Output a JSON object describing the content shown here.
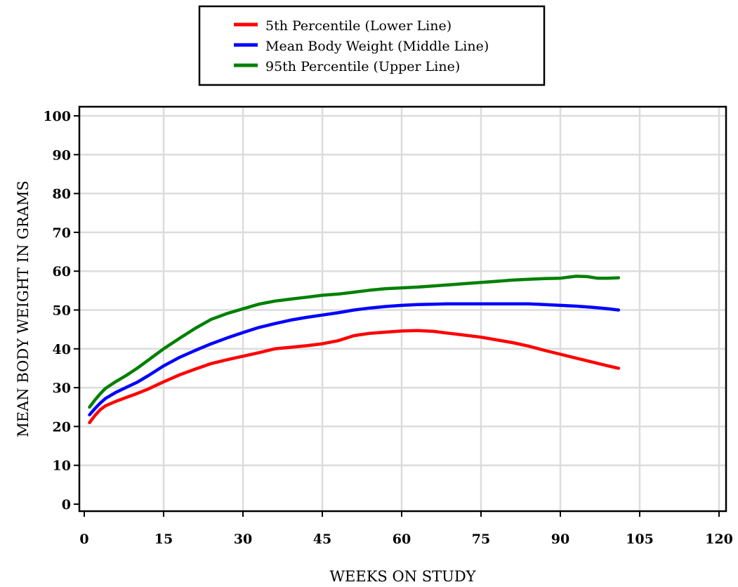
{
  "chart_data": {
    "type": "line",
    "title": "",
    "xlabel": "WEEKS ON STUDY",
    "ylabel": "MEAN BODY WEIGHT IN GRAMS",
    "xlim": [
      0,
      120
    ],
    "ylim": [
      0,
      100
    ],
    "xticks": [
      0,
      15,
      30,
      45,
      60,
      75,
      90,
      105,
      120
    ],
    "yticks": [
      0,
      10,
      20,
      30,
      40,
      50,
      60,
      70,
      80,
      90,
      100
    ],
    "grid": true,
    "legend_position": "top-center",
    "series": [
      {
        "name": "5th Percentile (Lower Line)",
        "color": "#ff0000",
        "points": [
          [
            1,
            21
          ],
          [
            2,
            22.8
          ],
          [
            3,
            24.3
          ],
          [
            4,
            25.3
          ],
          [
            6,
            26.5
          ],
          [
            8,
            27.5
          ],
          [
            10,
            28.5
          ],
          [
            12,
            29.6
          ],
          [
            15,
            31.5
          ],
          [
            18,
            33.3
          ],
          [
            21,
            34.8
          ],
          [
            24,
            36.2
          ],
          [
            27,
            37.2
          ],
          [
            30,
            38.1
          ],
          [
            33,
            39
          ],
          [
            36,
            40
          ],
          [
            39,
            40.4
          ],
          [
            42,
            40.8
          ],
          [
            45,
            41.3
          ],
          [
            48,
            42.1
          ],
          [
            51,
            43.4
          ],
          [
            54,
            44
          ],
          [
            57,
            44.3
          ],
          [
            60,
            44.6
          ],
          [
            63,
            44.7
          ],
          [
            66,
            44.5
          ],
          [
            69,
            44
          ],
          [
            72,
            43.5
          ],
          [
            75,
            43
          ],
          [
            78,
            42.3
          ],
          [
            81,
            41.6
          ],
          [
            84,
            40.7
          ],
          [
            87,
            39.6
          ],
          [
            90,
            38.6
          ],
          [
            93,
            37.6
          ],
          [
            96,
            36.6
          ],
          [
            99,
            35.6
          ],
          [
            101,
            35
          ]
        ]
      },
      {
        "name": "Mean Body Weight (Middle Line)",
        "color": "#0000ff",
        "points": [
          [
            1,
            23
          ],
          [
            2,
            24.6
          ],
          [
            3,
            26
          ],
          [
            4,
            27.2
          ],
          [
            6,
            28.8
          ],
          [
            8,
            30.1
          ],
          [
            10,
            31.4
          ],
          [
            12,
            33
          ],
          [
            15,
            35.6
          ],
          [
            18,
            37.8
          ],
          [
            21,
            39.6
          ],
          [
            24,
            41.3
          ],
          [
            27,
            42.8
          ],
          [
            30,
            44.2
          ],
          [
            33,
            45.5
          ],
          [
            36,
            46.5
          ],
          [
            39,
            47.4
          ],
          [
            42,
            48.1
          ],
          [
            45,
            48.7
          ],
          [
            48,
            49.3
          ],
          [
            51,
            50
          ],
          [
            54,
            50.5
          ],
          [
            57,
            50.9
          ],
          [
            60,
            51.2
          ],
          [
            63,
            51.4
          ],
          [
            66,
            51.5
          ],
          [
            69,
            51.6
          ],
          [
            72,
            51.6
          ],
          [
            75,
            51.6
          ],
          [
            78,
            51.6
          ],
          [
            81,
            51.6
          ],
          [
            84,
            51.6
          ],
          [
            87,
            51.4
          ],
          [
            90,
            51.2
          ],
          [
            93,
            51
          ],
          [
            96,
            50.7
          ],
          [
            99,
            50.3
          ],
          [
            101,
            50
          ]
        ]
      },
      {
        "name": "95th Percentile (Upper Line)",
        "color": "#008000",
        "points": [
          [
            1,
            25
          ],
          [
            2,
            26.8
          ],
          [
            3,
            28.4
          ],
          [
            4,
            29.8
          ],
          [
            6,
            31.6
          ],
          [
            8,
            33.2
          ],
          [
            10,
            35
          ],
          [
            12,
            37
          ],
          [
            15,
            40
          ],
          [
            18,
            42.7
          ],
          [
            21,
            45.3
          ],
          [
            24,
            47.6
          ],
          [
            27,
            49.1
          ],
          [
            30,
            50.3
          ],
          [
            33,
            51.5
          ],
          [
            36,
            52.3
          ],
          [
            39,
            52.8
          ],
          [
            42,
            53.3
          ],
          [
            45,
            53.8
          ],
          [
            48,
            54.1
          ],
          [
            51,
            54.6
          ],
          [
            54,
            55.1
          ],
          [
            57,
            55.5
          ],
          [
            60,
            55.7
          ],
          [
            63,
            55.9
          ],
          [
            66,
            56.2
          ],
          [
            69,
            56.5
          ],
          [
            72,
            56.8
          ],
          [
            75,
            57.1
          ],
          [
            78,
            57.4
          ],
          [
            81,
            57.7
          ],
          [
            84,
            57.9
          ],
          [
            87,
            58.1
          ],
          [
            90,
            58.2
          ],
          [
            93,
            58.7
          ],
          [
            95,
            58.6
          ],
          [
            97,
            58.2
          ],
          [
            99,
            58.2
          ],
          [
            101,
            58.3
          ]
        ]
      }
    ]
  }
}
